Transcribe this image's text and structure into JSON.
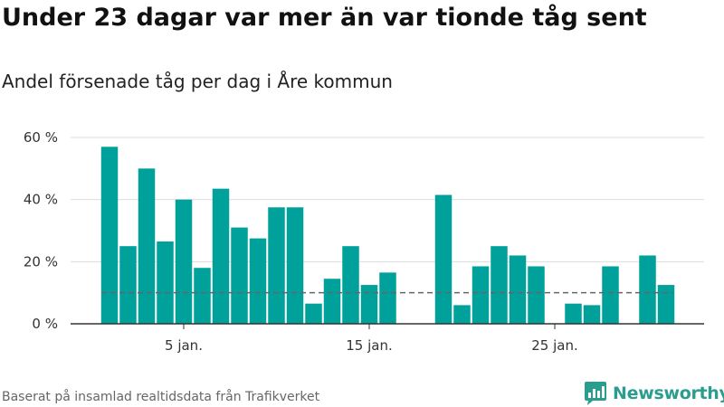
{
  "title": "Under 23 dagar var mer än var tionde tåg sent",
  "subtitle": "Andel försenade tåg per dag i Åre kommun",
  "source": "Baserat på insamlad realtidsdata från Trafikverket",
  "brand": "Newsworthy",
  "colors": {
    "bar": "#00a19a",
    "reference": "#666666",
    "grid": "#dddddd",
    "axis": "#333333",
    "brand": "#2a9d8f"
  },
  "chart_data": {
    "type": "bar",
    "x_unit": "day of January",
    "x": [
      1,
      2,
      3,
      4,
      5,
      6,
      7,
      8,
      9,
      10,
      11,
      12,
      13,
      14,
      15,
      16,
      17,
      18,
      19,
      20,
      21,
      22,
      23,
      24,
      25,
      26,
      27,
      28,
      29,
      30,
      31
    ],
    "values": [
      57,
      25,
      50,
      26.5,
      40,
      18,
      43.5,
      31,
      27.5,
      37.5,
      37.5,
      6.5,
      14.5,
      25,
      12.5,
      16.5,
      null,
      null,
      41.5,
      6,
      18.5,
      25,
      22,
      18.5,
      0,
      6.5,
      6,
      18.5,
      null,
      22,
      12.5
    ],
    "reference_line": 10,
    "ylim": [
      0,
      60
    ],
    "yticks": [
      {
        "value": 0,
        "label": "0 %"
      },
      {
        "value": 20,
        "label": "20 %"
      },
      {
        "value": 40,
        "label": "40 %"
      },
      {
        "value": 60,
        "label": "60 %"
      }
    ],
    "xticks": [
      {
        "value": 5,
        "label": "5 jan."
      },
      {
        "value": 15,
        "label": "15 jan."
      },
      {
        "value": 25,
        "label": "25 jan."
      }
    ],
    "grid": true
  }
}
